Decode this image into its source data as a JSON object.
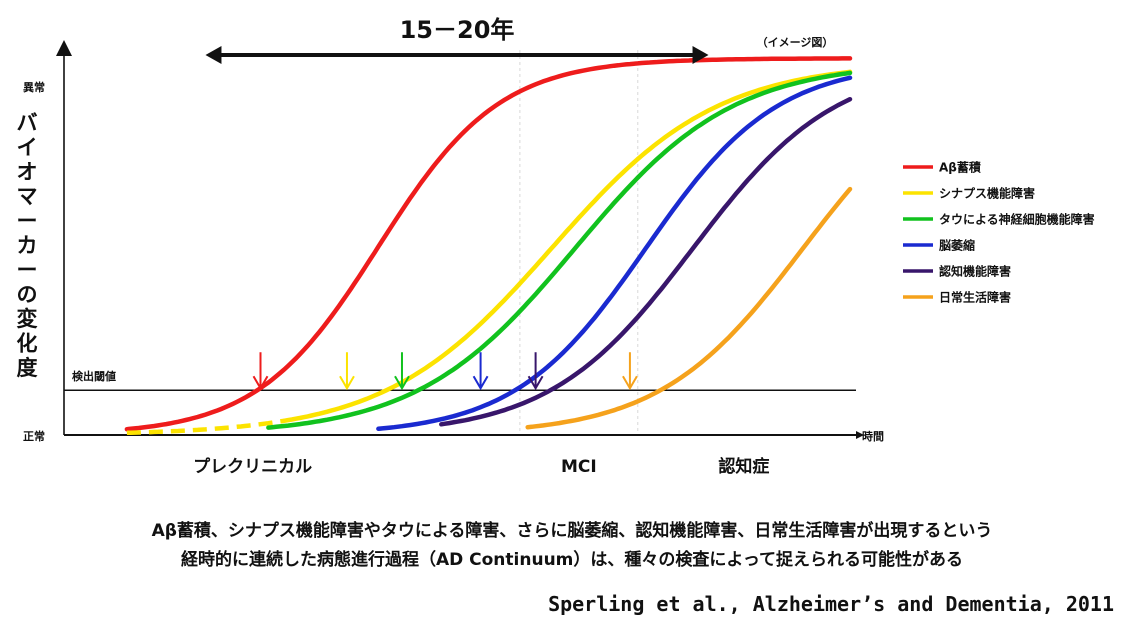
{
  "chart_data": {
    "type": "line",
    "note_top_right": "（イメージ図）",
    "span_label": "15－20年",
    "threshold_label": "検出閾値",
    "y_axis": {
      "label": "バイオマーカーの変化度",
      "top_label": "異常",
      "bottom_label": "正常"
    },
    "x_axis": {
      "label": "時間",
      "phases": [
        "プレクリニカル",
        "MCI",
        "認知症"
      ]
    },
    "xlim": [
      0,
      100
    ],
    "ylim": [
      0,
      100
    ],
    "threshold_value": 12,
    "span": [
      18,
      82
    ],
    "phase_dividers": [
      58,
      73
    ],
    "phase_positions": [
      24,
      65.5,
      86.5
    ],
    "series": [
      {
        "name": "Aβ蓄積",
        "color": "#ee1c1c",
        "start": 8,
        "mid": 40,
        "k": 0.13,
        "max": 101,
        "end": 100,
        "arrow_x": 25,
        "dashed": false
      },
      {
        "name": "シナプス機能障害",
        "color": "#fce300",
        "start": 8,
        "mid": 62,
        "k": 0.095,
        "max": 100,
        "end": 100,
        "arrow_x": 36,
        "dashed": true,
        "dash_until": 28
      },
      {
        "name": "タウによる神経細胞機能障害",
        "color": "#11c21e",
        "start": 26,
        "mid": 65,
        "k": 0.1,
        "max": 100,
        "end": 100,
        "arrow_x": 43,
        "dashed": false
      },
      {
        "name": "脳萎縮",
        "color": "#1a2ad0",
        "start": 40,
        "mid": 74,
        "k": 0.12,
        "max": 100,
        "end": 100,
        "arrow_x": 53,
        "dashed": false
      },
      {
        "name": "認知機能障害",
        "color": "#38166b",
        "start": 48,
        "mid": 80,
        "k": 0.11,
        "max": 100,
        "end": 100,
        "arrow_x": 60,
        "dashed": false
      },
      {
        "name": "日常生活障害",
        "color": "#f5a21c",
        "start": 59,
        "mid": 94,
        "k": 0.11,
        "max": 100,
        "end": 100,
        "arrow_x": 72,
        "dashed": false
      }
    ]
  },
  "caption": {
    "line1": "Aβ蓄積、シナプス機能障害やタウによる障害、さらに脳萎縮、認知機能障害、日常生活障害が出現するという",
    "line2": "経時的に連続した病態進行過程（AD Continuum）は、種々の検査によって捉えられる可能性がある"
  },
  "citation": "Sperling et al., Alzheimer’s and Dementia, 2011"
}
